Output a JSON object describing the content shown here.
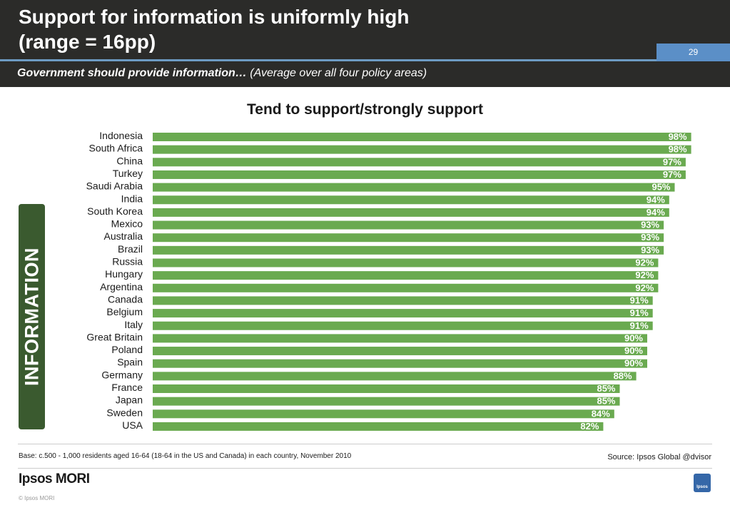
{
  "header": {
    "title_line1": "Support for information is uniformly high",
    "title_line2": "(range = 16pp)",
    "page_number": "29",
    "subtitle_bold": "Government should provide information…",
    "subtitle_rest": " (Average over all four policy areas)"
  },
  "side_label": "INFORMATION",
  "chart_data": {
    "type": "bar",
    "orientation": "horizontal",
    "title": "Tend to support/strongly support",
    "categories": [
      "Indonesia",
      "South Africa",
      "China",
      "Turkey",
      "Saudi Arabia",
      "India",
      "South Korea",
      "Mexico",
      "Australia",
      "Brazil",
      "Russia",
      "Hungary",
      "Argentina",
      "Canada",
      "Belgium",
      "Italy",
      "Great Britain",
      "Poland",
      "Spain",
      "Germany",
      "France",
      "Japan",
      "Sweden",
      "USA"
    ],
    "values": [
      98,
      98,
      97,
      97,
      95,
      94,
      94,
      93,
      93,
      93,
      92,
      92,
      92,
      91,
      91,
      91,
      90,
      90,
      90,
      88,
      85,
      85,
      84,
      82
    ],
    "value_labels": [
      "98%",
      "98%",
      "97%",
      "97%",
      "95%",
      "94%",
      "94%",
      "93%",
      "93%",
      "93%",
      "92%",
      "92%",
      "92%",
      "91%",
      "91%",
      "91%",
      "90%",
      "90%",
      "90%",
      "88%",
      "85%",
      "85%",
      "84%",
      "82%"
    ],
    "xlim": [
      0,
      100
    ],
    "bar_color": "#6aaa50",
    "grid": false,
    "legend": "none"
  },
  "footer": {
    "base_note": "Base: c.500 - 1,000 residents aged 16-64 (18-64 in the US and Canada) in each country, November 2010",
    "source": "Source: Ipsos Global @dvisor",
    "logo_text": "Ipsos MORI",
    "logo_mark_text": "Ipsos",
    "copyright": "© Ipsos MORI"
  }
}
